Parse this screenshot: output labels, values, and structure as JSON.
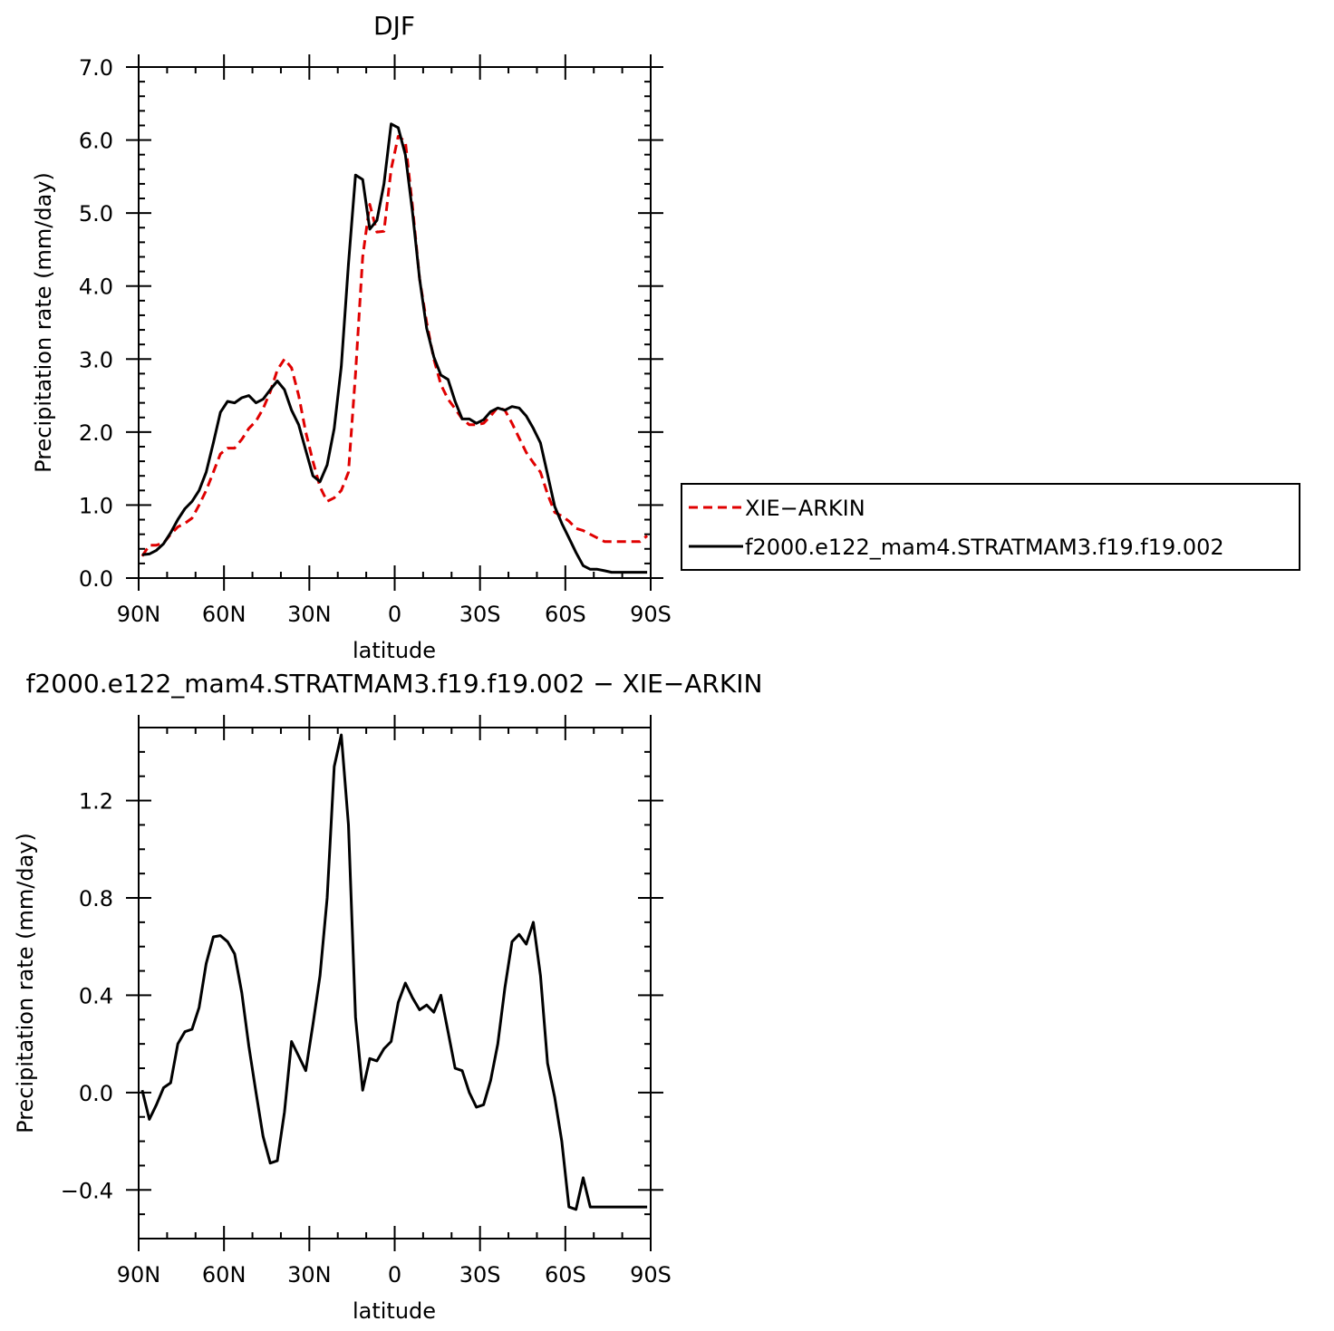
{
  "chart_data": [
    {
      "type": "line",
      "title": "DJF",
      "xlabel": "latitude",
      "ylabel": "Precipitation rate (mm/day)",
      "xlim": [
        -90,
        90
      ],
      "ylim": [
        0,
        7
      ],
      "x_ticks": [
        -90,
        -60,
        -30,
        0,
        30,
        60,
        90
      ],
      "x_tick_labels": [
        "90N",
        "60N",
        "30N",
        "0",
        "30S",
        "60S",
        "90S"
      ],
      "y_ticks": [
        0,
        1,
        2,
        3,
        4,
        5,
        6,
        7
      ],
      "y_tick_labels": [
        "0.0",
        "1.0",
        "2.0",
        "3.0",
        "4.0",
        "5.0",
        "6.0",
        "7.0"
      ],
      "legend": {
        "placement": "right",
        "entries": [
          {
            "label": "XIE−ARKIN",
            "color": "#e00000",
            "dash": "dashed"
          },
          {
            "label": "f2000.e122_mam4.STRATMAM3.f19.f19.002",
            "color": "#000000",
            "dash": "solid"
          }
        ]
      },
      "series": [
        {
          "name": "XIE−ARKIN",
          "color": "#e00000",
          "dash": "dashed",
          "x": [
            -88.75,
            -86.25,
            -83.75,
            -81.25,
            -78.75,
            -76.25,
            -73.75,
            -71.25,
            -68.75,
            -66.25,
            -63.75,
            -61.25,
            -58.75,
            -56.25,
            -53.75,
            -51.25,
            -48.75,
            -46.25,
            -43.75,
            -41.25,
            -38.75,
            -36.25,
            -33.75,
            -31.25,
            -28.75,
            -26.25,
            -23.75,
            -21.25,
            -18.75,
            -16.25,
            -13.75,
            -11.25,
            -8.75,
            -6.25,
            -3.75,
            -1.25,
            1.25,
            3.75,
            6.25,
            8.75,
            11.25,
            13.75,
            16.25,
            18.75,
            21.25,
            23.75,
            26.25,
            28.75,
            31.25,
            33.75,
            36.25,
            38.75,
            41.25,
            43.75,
            46.25,
            48.75,
            51.25,
            53.75,
            56.25,
            58.75,
            61.25,
            63.75,
            66.25,
            68.75,
            71.25,
            73.75,
            76.25,
            78.75,
            81.25,
            83.75,
            86.25,
            88.75
          ],
          "y": [
            0.3,
            0.45,
            0.45,
            0.48,
            0.6,
            0.7,
            0.75,
            0.82,
            1.0,
            1.2,
            1.45,
            1.7,
            1.78,
            1.78,
            1.9,
            2.05,
            2.15,
            2.32,
            2.55,
            2.85,
            3.0,
            2.88,
            2.5,
            2.0,
            1.6,
            1.25,
            1.05,
            1.1,
            1.2,
            1.45,
            2.8,
            4.4,
            5.12,
            4.74,
            4.75,
            5.6,
            6.05,
            5.98,
            5.1,
            4.1,
            3.5,
            3.0,
            2.65,
            2.45,
            2.32,
            2.18,
            2.1,
            2.1,
            2.12,
            2.22,
            2.34,
            2.3,
            2.12,
            1.92,
            1.72,
            1.58,
            1.45,
            1.15,
            0.9,
            0.85,
            0.78,
            0.68,
            0.65,
            0.6,
            0.55,
            0.5,
            0.5,
            0.5,
            0.5,
            0.5,
            0.5,
            0.58
          ]
        },
        {
          "name": "f2000.e122_mam4.STRATMAM3.f19.f19.002",
          "color": "#000000",
          "dash": "solid",
          "x": [
            -88.75,
            -86.25,
            -83.75,
            -81.25,
            -78.75,
            -76.25,
            -73.75,
            -71.25,
            -68.75,
            -66.25,
            -63.75,
            -61.25,
            -58.75,
            -56.25,
            -53.75,
            -51.25,
            -48.75,
            -46.25,
            -43.75,
            -41.25,
            -38.75,
            -36.25,
            -33.75,
            -31.25,
            -28.75,
            -26.25,
            -23.75,
            -21.25,
            -18.75,
            -16.25,
            -13.75,
            -11.25,
            -8.75,
            -6.25,
            -3.75,
            -1.25,
            1.25,
            3.75,
            6.25,
            8.75,
            11.25,
            13.75,
            16.25,
            18.75,
            21.25,
            23.75,
            26.25,
            28.75,
            31.25,
            33.75,
            36.25,
            38.75,
            41.25,
            43.75,
            46.25,
            48.75,
            51.25,
            53.75,
            56.25,
            58.75,
            61.25,
            63.75,
            66.25,
            68.75,
            71.25,
            73.75,
            76.25,
            78.75,
            81.25,
            83.75,
            86.25,
            88.75
          ],
          "y": [
            0.32,
            0.33,
            0.38,
            0.47,
            0.62,
            0.8,
            0.95,
            1.05,
            1.2,
            1.45,
            1.85,
            2.27,
            2.42,
            2.4,
            2.47,
            2.5,
            2.4,
            2.45,
            2.58,
            2.7,
            2.58,
            2.3,
            2.1,
            1.75,
            1.4,
            1.32,
            1.55,
            2.05,
            2.9,
            4.3,
            5.52,
            5.46,
            4.78,
            4.9,
            5.4,
            6.22,
            6.17,
            5.8,
            5.02,
            4.1,
            3.42,
            3.03,
            2.78,
            2.72,
            2.42,
            2.18,
            2.18,
            2.12,
            2.17,
            2.28,
            2.33,
            2.3,
            2.35,
            2.33,
            2.22,
            2.05,
            1.85,
            1.42,
            0.98,
            0.75,
            0.55,
            0.35,
            0.17,
            0.12,
            0.12,
            0.1,
            0.08,
            0.08,
            0.08,
            0.08,
            0.08,
            0.08
          ]
        }
      ]
    },
    {
      "type": "line",
      "title": "f2000.e122_mam4.STRATMAM3.f19.f19.002 − XIE−ARKIN",
      "xlabel": "latitude",
      "ylabel": "Precipitation rate (mm/day)",
      "xlim": [
        -90,
        90
      ],
      "ylim": [
        -0.6,
        1.5
      ],
      "x_ticks": [
        -90,
        -60,
        -30,
        0,
        30,
        60,
        90
      ],
      "x_tick_labels": [
        "90N",
        "60N",
        "30N",
        "0",
        "30S",
        "60S",
        "90S"
      ],
      "y_ticks": [
        -0.4,
        0.0,
        0.4,
        0.8,
        1.2
      ],
      "y_tick_labels": [
        "−0.4",
        "0.0",
        "0.4",
        "0.8",
        "1.2"
      ],
      "series": [
        {
          "color": "#000000",
          "dash": "solid",
          "x": [
            -88.75,
            -86.25,
            -83.75,
            -81.25,
            -78.75,
            -76.25,
            -73.75,
            -71.25,
            -68.75,
            -66.25,
            -63.75,
            -61.25,
            -58.75,
            -56.25,
            -53.75,
            -51.25,
            -48.75,
            -46.25,
            -43.75,
            -41.25,
            -38.75,
            -36.25,
            -33.75,
            -31.25,
            -28.75,
            -26.25,
            -23.75,
            -21.25,
            -18.75,
            -16.25,
            -13.75,
            -11.25,
            -8.75,
            -6.25,
            -3.75,
            -1.25,
            1.25,
            3.75,
            6.25,
            8.75,
            11.25,
            13.75,
            16.25,
            18.75,
            21.25,
            23.75,
            26.25,
            28.75,
            31.25,
            33.75,
            36.25,
            38.75,
            41.25,
            43.75,
            46.25,
            48.75,
            51.25,
            53.75,
            56.25,
            58.75,
            61.25,
            63.75,
            66.25,
            68.75,
            71.25,
            73.75,
            76.25,
            78.75,
            81.25,
            83.75,
            86.25,
            88.75
          ],
          "y": [
            0.01,
            -0.11,
            -0.05,
            0.02,
            0.04,
            0.2,
            0.25,
            0.26,
            0.35,
            0.53,
            0.64,
            0.645,
            0.62,
            0.57,
            0.41,
            0.19,
            0.0,
            -0.18,
            -0.29,
            -0.28,
            -0.08,
            0.21,
            0.15,
            0.09,
            0.28,
            0.48,
            0.8,
            1.34,
            1.47,
            1.1,
            0.31,
            0.01,
            0.14,
            0.13,
            0.18,
            0.21,
            0.37,
            0.45,
            0.39,
            0.34,
            0.36,
            0.33,
            0.4,
            0.25,
            0.1,
            0.09,
            0.0,
            -0.06,
            -0.05,
            0.05,
            0.2,
            0.43,
            0.62,
            0.65,
            0.61,
            0.7,
            0.48,
            0.12,
            -0.02,
            -0.2,
            -0.47,
            -0.48,
            -0.35,
            -0.47,
            -0.47,
            -0.47,
            -0.47,
            -0.47,
            -0.47,
            -0.47,
            -0.47,
            -0.47
          ]
        }
      ]
    }
  ]
}
